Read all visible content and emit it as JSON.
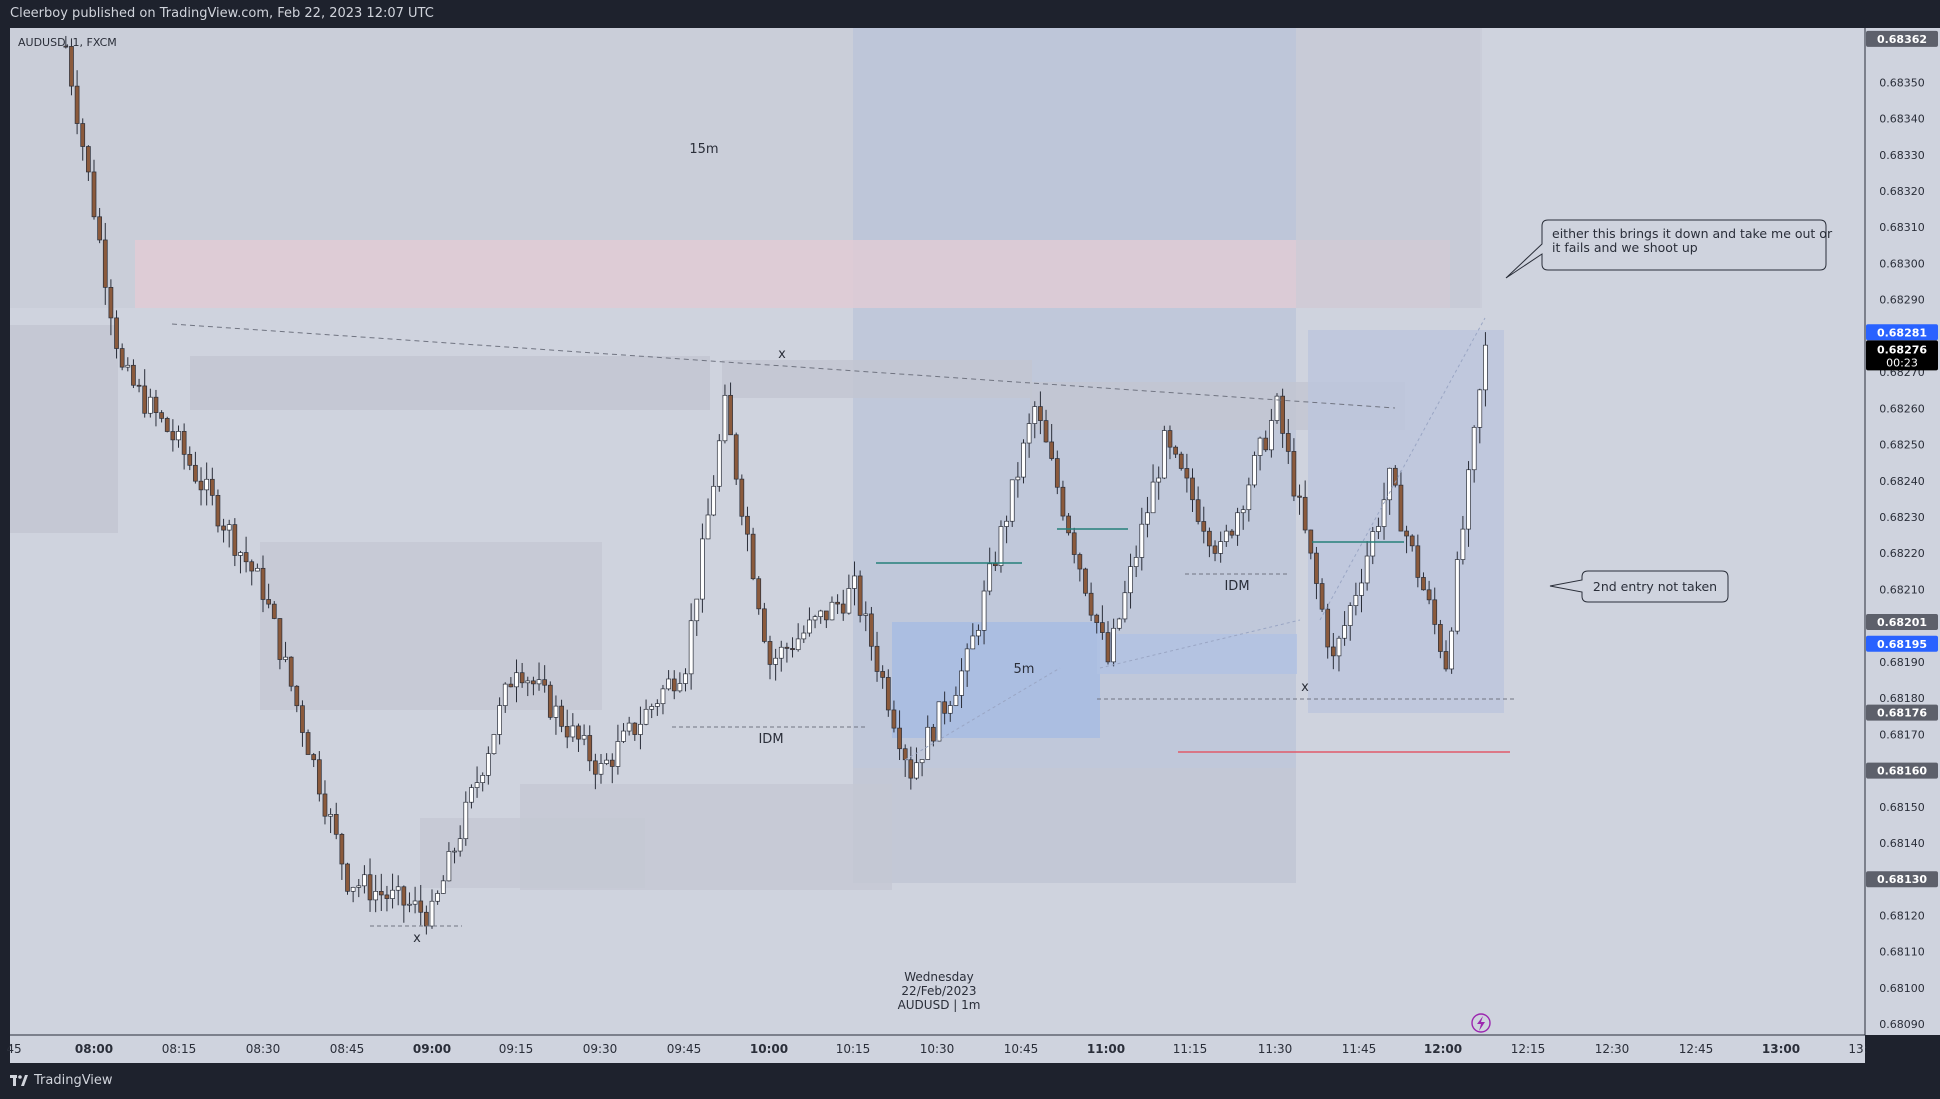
{
  "header": {
    "publish_line": "Cleerboy published on TradingView.com, Feb 22, 2023 12:07 UTC"
  },
  "footer": {
    "brand": "TradingView",
    "logo_icon": "tradingview-logo-icon"
  },
  "colors": {
    "background": "#cfd3de",
    "bull_candle": "#ffffff",
    "bear_candle": "#8b5a3c",
    "wick": "#2a2e39",
    "zone_gray": "#b9bdc9",
    "zone_blue": "#a9bde0",
    "zone_pink": "#e6c8d0",
    "last_price": "#000000",
    "blue_label": "#2962ff",
    "gray_label": "#5d606b",
    "teal_line": "#26807a",
    "red_line": "#e05a6a"
  },
  "chart_data": {
    "type": "candlestick",
    "symbol_label": "AUDUSD, 1, FXCM",
    "date_label": [
      "Wednesday",
      "22/Feb/2023",
      "AUDUSD | 1m"
    ],
    "x_axis": {
      "ticks": [
        "45",
        "08:00",
        "08:15",
        "08:30",
        "08:45",
        "09:00",
        "09:15",
        "09:30",
        "09:45",
        "10:00",
        "10:15",
        "10:30",
        "10:45",
        "11:00",
        "11:15",
        "11:30",
        "11:45",
        "12:00",
        "12:15",
        "12:30",
        "12:45",
        "13:00",
        "13:"
      ],
      "bold_ticks": [
        "08:00",
        "09:00",
        "10:00",
        "11:00",
        "12:00",
        "13:00"
      ]
    },
    "y_axis": {
      "range": [
        0.68087,
        0.68365
      ],
      "ticks": [
        "0.68350",
        "0.68340",
        "0.68330",
        "0.68320",
        "0.68310",
        "0.68300",
        "0.68290",
        "0.68270",
        "0.68260",
        "0.68250",
        "0.68240",
        "0.68230",
        "0.68220",
        "0.68210",
        "0.68190",
        "0.68180",
        "0.68170",
        "0.68150",
        "0.68140",
        "0.68120",
        "0.68110",
        "0.68100",
        "0.68090"
      ]
    },
    "price_labels": [
      {
        "value": "0.68362",
        "style": "gray"
      },
      {
        "value": "0.68281",
        "style": "blue"
      },
      {
        "value": "0.68201",
        "style": "gray"
      },
      {
        "value": "0.68195",
        "style": "blue"
      },
      {
        "value": "0.68176",
        "style": "gray"
      },
      {
        "value": "0.68160",
        "style": "gray"
      },
      {
        "value": "0.68130",
        "style": "gray"
      }
    ],
    "last_price": {
      "value": "0.68276",
      "countdown": "00:23"
    },
    "key_points": [
      {
        "time": "07:55",
        "price": 0.6836
      },
      {
        "time": "08:05",
        "price": 0.6827
      },
      {
        "time": "08:15",
        "price": 0.6825
      },
      {
        "time": "08:30",
        "price": 0.6821
      },
      {
        "time": "08:45",
        "price": 0.6813
      },
      {
        "time": "09:00",
        "price": 0.6812
      },
      {
        "time": "09:15",
        "price": 0.6819
      },
      {
        "time": "09:30",
        "price": 0.6816
      },
      {
        "time": "09:45",
        "price": 0.6819
      },
      {
        "time": "09:52",
        "price": 0.6826
      },
      {
        "time": "10:00",
        "price": 0.6819
      },
      {
        "time": "10:15",
        "price": 0.6821
      },
      {
        "time": "10:25",
        "price": 0.6816
      },
      {
        "time": "10:35",
        "price": 0.6819
      },
      {
        "time": "10:47",
        "price": 0.6826
      },
      {
        "time": "11:00",
        "price": 0.6819
      },
      {
        "time": "11:10",
        "price": 0.6825
      },
      {
        "time": "11:20",
        "price": 0.6822
      },
      {
        "time": "11:30",
        "price": 0.6826
      },
      {
        "time": "11:40",
        "price": 0.6819
      },
      {
        "time": "11:50",
        "price": 0.6824
      },
      {
        "time": "12:00",
        "price": 0.6819
      },
      {
        "time": "12:07",
        "price": 0.68276
      }
    ],
    "annotations": [
      "15m",
      "x",
      "x",
      "x",
      "IDM",
      "IDM",
      "5m"
    ],
    "callouts": [
      "either this brings it down and take me out or it fails and we shoot up",
      "2nd entry not taken"
    ]
  }
}
